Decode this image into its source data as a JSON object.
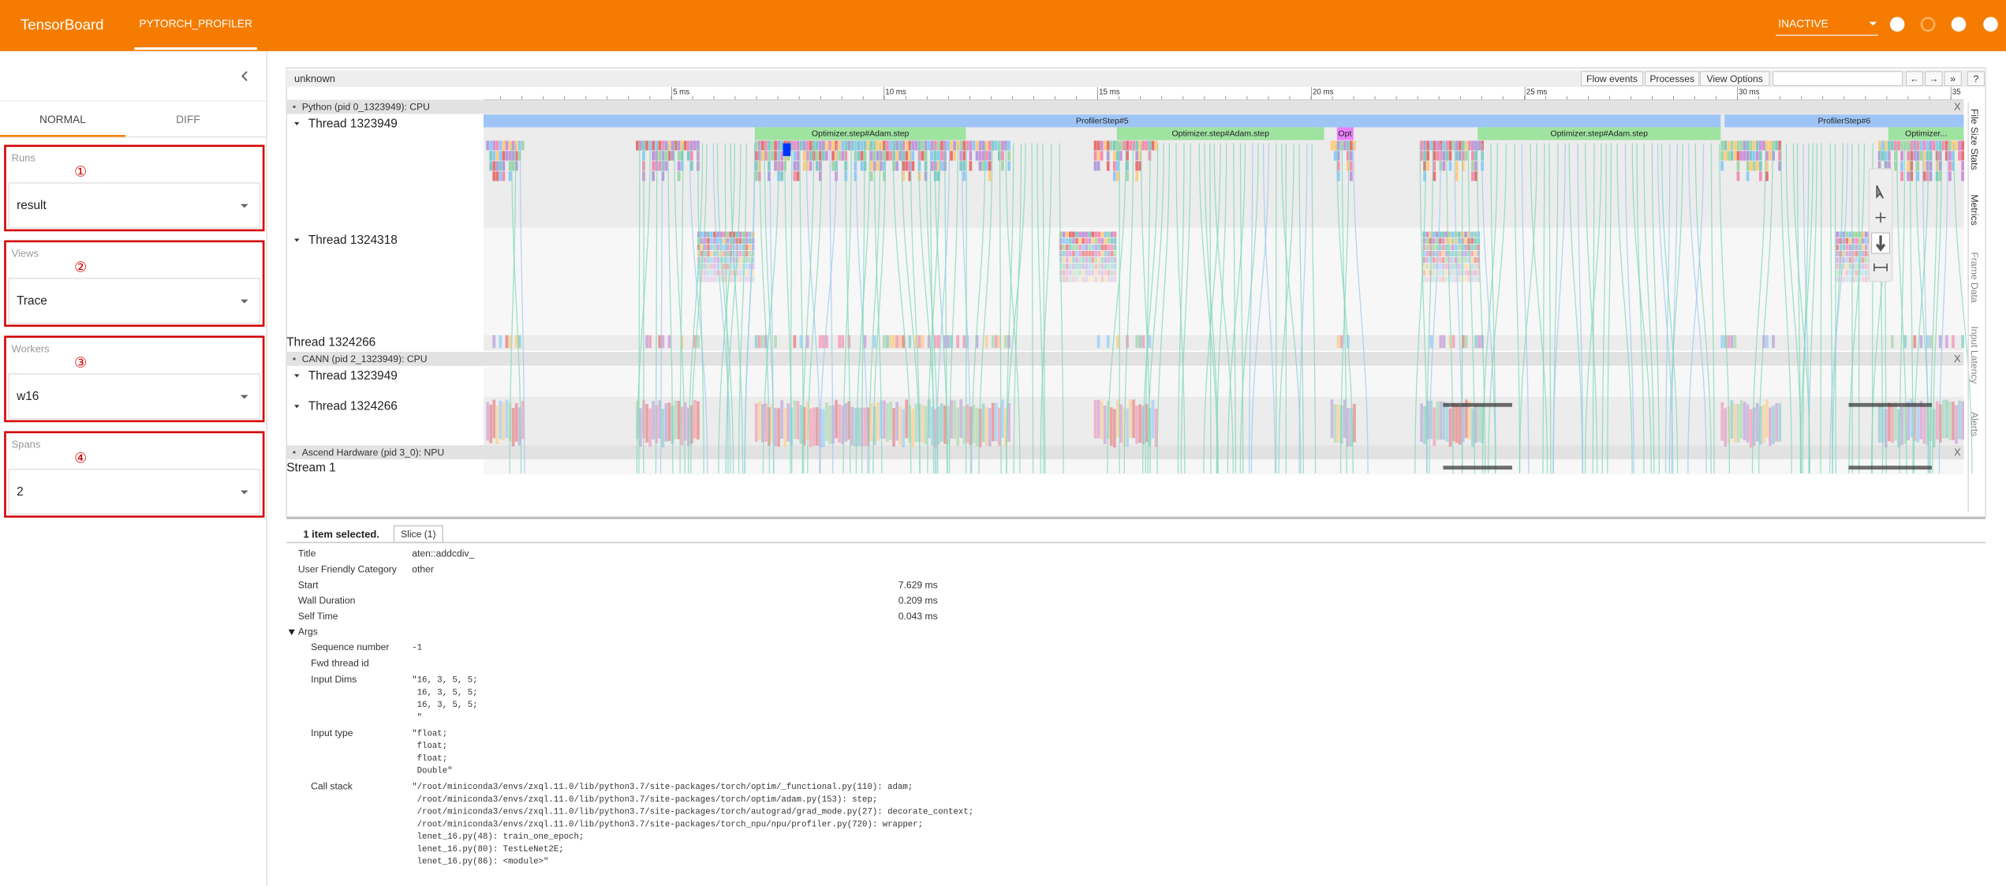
{
  "header": {
    "app": "TensorBoard",
    "tab": "PYTORCH_PROFILER",
    "status": "INACTIVE"
  },
  "sidebar": {
    "tabs": [
      "NORMAL",
      "DIFF"
    ],
    "fields": [
      {
        "label": "Runs",
        "marker": "①",
        "value": "result"
      },
      {
        "label": "Views",
        "marker": "②",
        "value": "Trace"
      },
      {
        "label": "Workers",
        "marker": "③",
        "value": "w16"
      },
      {
        "label": "Spans",
        "marker": "④",
        "value": "2"
      }
    ]
  },
  "trace": {
    "title": "unknown",
    "buttons": [
      "Flow events",
      "Processes",
      "View Options",
      "←",
      "→",
      "»",
      "?"
    ],
    "time_ticks": [
      "5 ms",
      "10 ms",
      "15 ms",
      "20 ms",
      "25 ms",
      "30 ms",
      "35"
    ],
    "processes": [
      "Python (pid 0_1323949): CPU",
      "CANN (pid 2_1323949): CPU",
      "Ascend Hardware (pid 3_0): NPU"
    ],
    "rows": [
      "Thread 1323949",
      "Thread 1324318",
      "Thread 1324266",
      "Thread 1323949",
      "Thread 1324266",
      "Stream 1"
    ],
    "slices": [
      "ProfilerStep#5",
      "Optimizer.step#Adam.step",
      "Optimizer.step#Adam.step",
      "Opt",
      "Optimizer.step#Adam.step",
      "ProfilerStep#6",
      "Optimizer..."
    ],
    "close": "X",
    "side_tabs": [
      "File Size Stats",
      "Metrics",
      "Frame Data",
      "Input Latency",
      "Alerts"
    ]
  },
  "details": {
    "summary": "1 item selected.",
    "tab": "Slice (1)",
    "fields": [
      {
        "name": "Title",
        "value": "aten::addcdiv_"
      },
      {
        "name": "User Friendly Category",
        "value": "other"
      },
      {
        "name": "Start",
        "value": "7.629 ms"
      },
      {
        "name": "Wall Duration",
        "value": "0.209 ms"
      },
      {
        "name": "Self Time",
        "value": "0.043 ms"
      }
    ],
    "args_label": "Args",
    "args": [
      {
        "name": "Sequence number",
        "lines": [
          "-1"
        ]
      },
      {
        "name": "Fwd thread id",
        "lines": []
      },
      {
        "name": "Input Dims",
        "lines": [
          "\"16, 3, 5, 5;",
          " 16, 3, 5, 5;",
          " 16, 3, 5, 5;",
          " \""
        ]
      },
      {
        "name": "Input type",
        "lines": [
          "\"float;",
          " float;",
          " float;",
          " Double\""
        ]
      },
      {
        "name": "Call stack",
        "lines": [
          "\"/root/miniconda3/envs/zxql.11.0/lib/python3.7/site-packages/torch/optim/_functional.py(110): adam;",
          " /root/miniconda3/envs/zxql.11.0/lib/python3.7/site-packages/torch/optim/adam.py(153): step;",
          " /root/miniconda3/envs/zxql.11.0/lib/python3.7/site-packages/torch/autograd/grad_mode.py(27): decorate_context;",
          " /root/miniconda3/envs/zxql.11.0/lib/python3.7/site-packages/torch_npu/npu/profiler.py(720): wrapper;",
          " lenet_16.py(48): train_one_epoch;",
          " lenet_16.py(80): TestLeNet2E;",
          " lenet_16.py(86): <module>\""
        ]
      }
    ]
  }
}
